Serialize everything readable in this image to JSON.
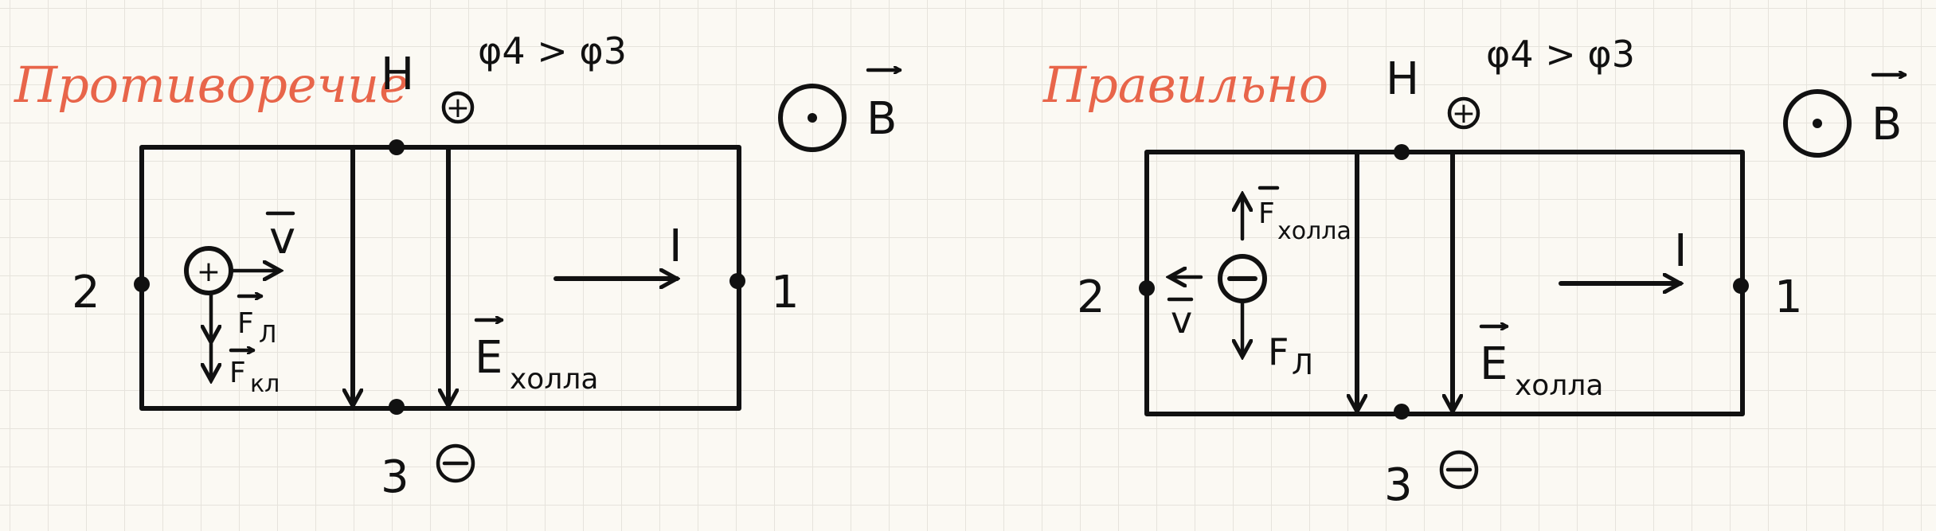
{
  "left": {
    "title": "Противоречие",
    "top_terminal": "H",
    "potential_relation": "φ4 > φ3",
    "top_charge": "+",
    "field_field": "B",
    "left_terminal": "2",
    "right_terminal": "1",
    "bottom_terminal": "3",
    "bottom_charge": "−",
    "current": "I",
    "particle_charge": "+",
    "velocity": "v",
    "force_lorentz": "F",
    "force_lorentz_sub": "Л",
    "force_coulomb": "F",
    "force_coulomb_sub": "кл",
    "hall_field": "E",
    "hall_field_sub": "холла"
  },
  "right": {
    "title": "Правильно",
    "top_terminal": "H",
    "potential_relation": "φ4 > φ3",
    "top_charge": "+",
    "field_field": "B",
    "left_terminal": "2",
    "right_terminal": "1",
    "bottom_terminal": "3",
    "bottom_charge": "−",
    "current": "I",
    "particle_charge": "−",
    "velocity": "v",
    "force_hall": "F",
    "force_hall_sub": "холла",
    "force_lorentz": "F",
    "force_lorentz_sub": "Л",
    "hall_field": "E",
    "hall_field_sub": "холла"
  },
  "colors": {
    "ink": "#111111",
    "title": "#e8654a",
    "paper": "#fbf9f3"
  }
}
